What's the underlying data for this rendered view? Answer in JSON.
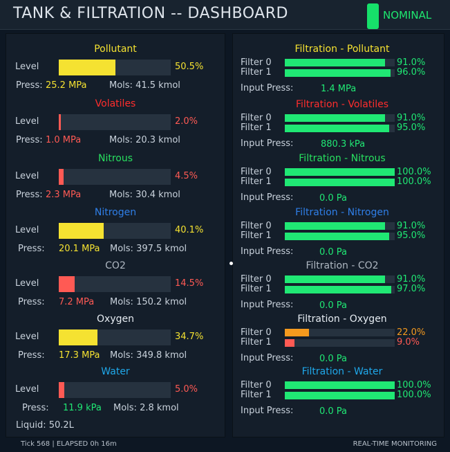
{
  "header": {
    "title": "TANK & FILTRATION -- DASHBOARD",
    "status": "NOMINAL",
    "status_color": "#1ee86f"
  },
  "labels": {
    "level": "Level",
    "press": "Press:",
    "mols_prefix": "Mols:",
    "filter0": "Filter 0",
    "filter1": "Filter 1",
    "input_press": "Input Press:"
  },
  "colors": {
    "yellow": "#f5e231",
    "red": "#ff5a54",
    "green": "#20e874",
    "orange": "#f59a1e",
    "track": "#26323f"
  },
  "tanks": [
    {
      "name": "Pollutant",
      "title_color": "#f5e231",
      "level": 50.5,
      "level_text": "50.5%",
      "level_color": "#f5e231",
      "bar_color": "#f5e231",
      "press": "25.2 MPa",
      "press_color": "#f5e231",
      "mols": "Mols: 41.5 kmol"
    },
    {
      "name": "Volatiles",
      "title_color": "#ff2d2d",
      "level": 2.0,
      "level_text": "2.0%",
      "level_color": "#ff5a54",
      "bar_color": "#ff5a54",
      "press": "1.0 MPa",
      "press_color": "#ff5a54",
      "mols": "Mols: 20.3 kmol"
    },
    {
      "name": "Nitrous",
      "title_color": "#28e05f",
      "level": 4.5,
      "level_text": "4.5%",
      "level_color": "#ff5a54",
      "bar_color": "#ff5a54",
      "press": "2.3 MPa",
      "press_color": "#ff5a54",
      "mols": "Mols: 30.4 kmol"
    },
    {
      "name": "Nitrogen",
      "title_color": "#2f7fe8",
      "level": 40.1,
      "level_text": "40.1%",
      "level_color": "#f5e231",
      "bar_color": "#f5e231",
      "press": "20.1 MPa",
      "press_color": "#f5e231",
      "mols": "Mols: 397.5 kmol"
    },
    {
      "name": "CO2",
      "title_color": "#aeb7c1",
      "level": 14.5,
      "level_text": "14.5%",
      "level_color": "#ff5a54",
      "bar_color": "#ff5a54",
      "press": "7.2 MPa",
      "press_color": "#ff5a54",
      "mols": "Mols: 150.2 kmol"
    },
    {
      "name": "Oxygen",
      "title_color": "#e6ecf2",
      "level": 34.7,
      "level_text": "34.7%",
      "level_color": "#f5e231",
      "bar_color": "#f5e231",
      "press": "17.3 MPa",
      "press_color": "#f5e231",
      "mols": "Mols: 349.8 kmol"
    },
    {
      "name": "Water",
      "title_color": "#1fa8ea",
      "level": 5.0,
      "level_text": "5.0%",
      "level_color": "#ff5a54",
      "bar_color": "#ff5a54",
      "press": "11.9 kPa",
      "press_color": "#20e874",
      "mols": "Mols: 2.8 kmol",
      "liquid": "Liquid: 50.2L"
    }
  ],
  "filtrations": [
    {
      "name": "Filtration - Pollutant",
      "title_color": "#f5e231",
      "f0": 91.0,
      "f0_text": "91.0%",
      "f0_color": "#20e874",
      "f1": 96.0,
      "f1_text": "96.0%",
      "f1_color": "#20e874",
      "input": "1.4 MPa"
    },
    {
      "name": "Filtration - Volatiles",
      "title_color": "#ff2d2d",
      "f0": 91.0,
      "f0_text": "91.0%",
      "f0_color": "#20e874",
      "f1": 95.0,
      "f1_text": "95.0%",
      "f1_color": "#20e874",
      "input": "880.3 kPa"
    },
    {
      "name": "Filtration - Nitrous",
      "title_color": "#28e05f",
      "f0": 100.0,
      "f0_text": "100.0%",
      "f0_color": "#20e874",
      "f1": 100.0,
      "f1_text": "100.0%",
      "f1_color": "#20e874",
      "input": "0.0 Pa"
    },
    {
      "name": "Filtration - Nitrogen",
      "title_color": "#2f7fe8",
      "f0": 91.0,
      "f0_text": "91.0%",
      "f0_color": "#20e874",
      "f1": 95.0,
      "f1_text": "95.0%",
      "f1_color": "#20e874",
      "input": "0.0 Pa"
    },
    {
      "name": "Filtration - CO2",
      "title_color": "#aeb7c1",
      "f0": 91.0,
      "f0_text": "91.0%",
      "f0_color": "#20e874",
      "f1": 97.0,
      "f1_text": "97.0%",
      "f1_color": "#20e874",
      "input": "0.0 Pa"
    },
    {
      "name": "Filtration - Oxygen",
      "title_color": "#e6ecf2",
      "f0": 22.0,
      "f0_text": "22.0%",
      "f0_color": "#f59a1e",
      "f1": 9.0,
      "f1_text": "9.0%",
      "f1_color": "#ff5a54",
      "input": "0.0 Pa"
    },
    {
      "name": "Filtration - Water",
      "title_color": "#1fa8ea",
      "f0": 100.0,
      "f0_text": "100.0%",
      "f0_color": "#20e874",
      "f1": 100.0,
      "f1_text": "100.0%",
      "f1_color": "#20e874",
      "input": "0.0 Pa"
    }
  ],
  "footer": {
    "left": "Tick 568 | ELAPSED 0h 16m",
    "right": "REAL-TIME MONITORING"
  }
}
